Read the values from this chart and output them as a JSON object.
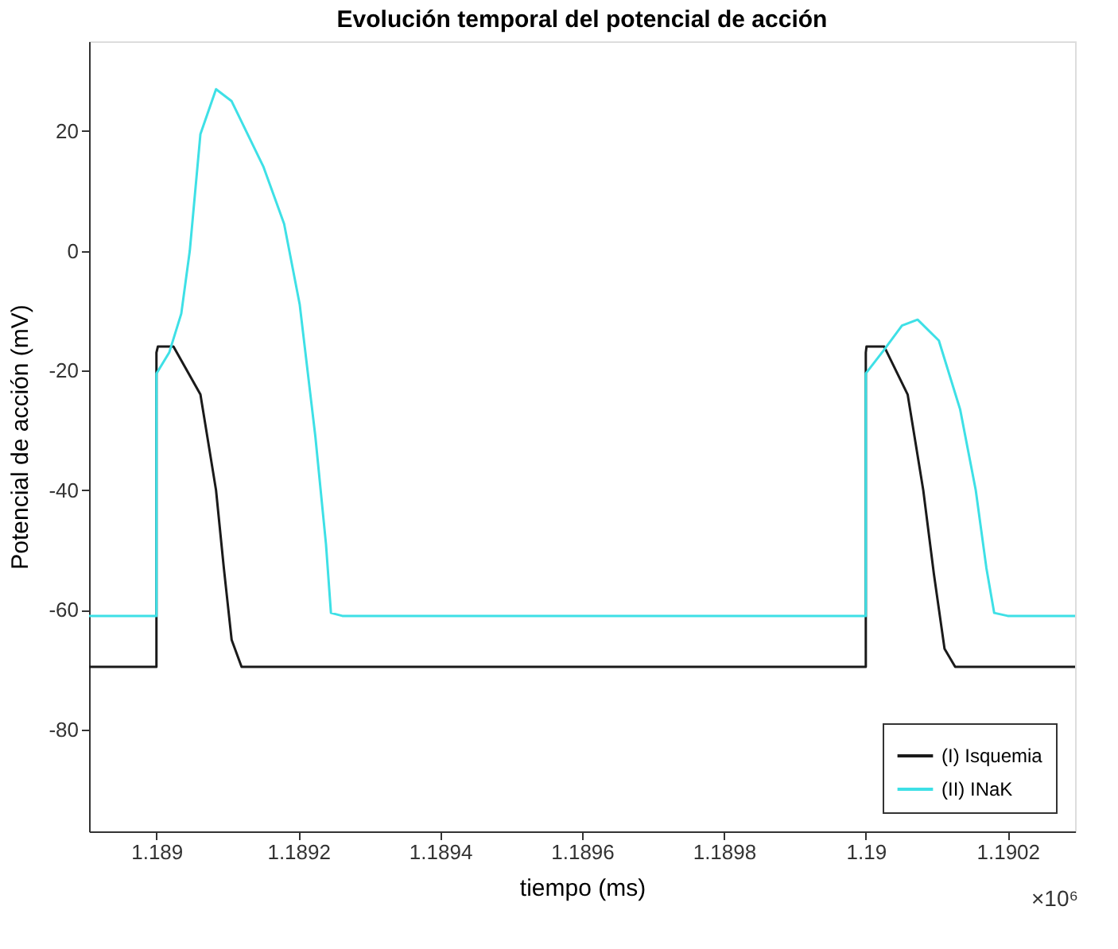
{
  "chart_data": {
    "type": "line",
    "title": "Evolución temporal del potencial de acción",
    "xlabel": "tiempo (ms)",
    "ylabel": "Potencial de acción (mV)",
    "annotations": [
      "×10⁶"
    ],
    "xlim": [
      1.188905,
      1.190295
    ],
    "xticks": [
      1.189,
      1.1892,
      1.1894,
      1.1896,
      1.1898,
      1.19,
      1.1902
    ],
    "ylim": [
      -97,
      35
    ],
    "yticks": [
      -80,
      -60,
      -40,
      -20,
      0,
      20
    ],
    "grid": false,
    "legend": "bottom right",
    "line_style": "solid",
    "marker": "none",
    "series": [
      {
        "name": "(I) Isquemia",
        "color": "#1a1a1a",
        "x": [
          1.188905,
          1.189,
          1.189,
          1.189002,
          1.189024,
          1.189062,
          1.189084,
          1.189095,
          1.189106,
          1.18912,
          1.19,
          1.19,
          1.190001,
          1.190026,
          1.190059,
          1.190081,
          1.190096,
          1.190111,
          1.190126,
          1.190295
        ],
        "values": [
          -69.5,
          -69.5,
          -17,
          -16,
          -16,
          -24,
          -40,
          -53,
          -65,
          -69.5,
          -69.5,
          -17,
          -16,
          -16,
          -24,
          -40,
          -54,
          -66.5,
          -69.5,
          -69.5
        ]
      },
      {
        "name": "(II) INaK",
        "color": "#3ee0e6",
        "x": [
          1.188905,
          1.189,
          1.189,
          1.189018,
          1.189035,
          1.189047,
          1.189062,
          1.189084,
          1.189106,
          1.189151,
          1.18918,
          1.189202,
          1.189224,
          1.189239,
          1.189246,
          1.189262,
          1.19,
          1.19,
          1.190026,
          1.190051,
          1.190073,
          1.190103,
          1.190133,
          1.190155,
          1.19017,
          1.190181,
          1.1902,
          1.190295
        ],
        "values": [
          -61,
          -61,
          -20.5,
          -17,
          -10.5,
          0,
          19.5,
          27,
          25,
          14,
          4.5,
          -9,
          -31,
          -49,
          -60.5,
          -61,
          -61,
          -20.5,
          -16.5,
          -12.5,
          -11.5,
          -15,
          -26.5,
          -40,
          -53,
          -60.5,
          -61,
          -61
        ]
      }
    ]
  }
}
